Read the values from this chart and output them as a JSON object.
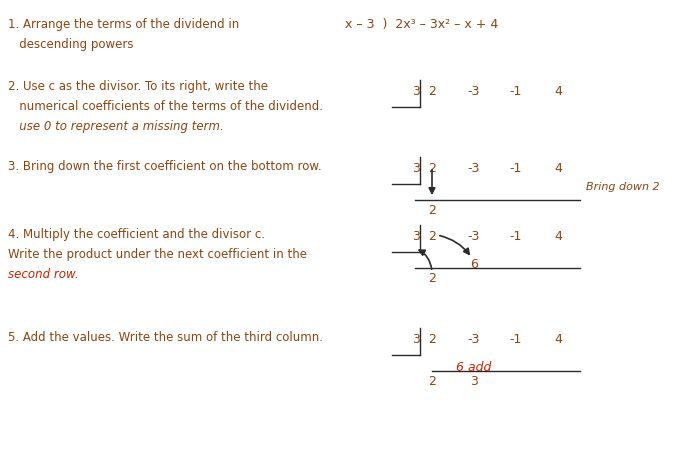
{
  "bg_color": "#ffffff",
  "brown": "#8B4513",
  "black": "#2a2a2a",
  "red": "#cc2200",
  "fig_width": 6.93,
  "fig_height": 4.53,
  "dpi": 100,
  "fs": 8.5,
  "fs_math": 9.0,
  "step1_line1": "1. Arrange the terms of the dividend in",
  "step1_line2": "   descending powers",
  "step1_right": "x – 3  )  2x³ – 3x² – x + 4",
  "step2_line1": "2. Use c as the divisor. To its right, write the",
  "step2_line2": "   numerical coefficients of the terms of the dividend.",
  "step2_line3": "   use 0 to represent a missing term.",
  "step3_line1": "3. Bring down the first coefficient on the bottom row.",
  "step4_line1": "4. Multiply the coefficient and the divisor c.",
  "step4_line2": "Write the product under the next coefficient in the",
  "step4_line3": "second row.",
  "step5_line1": "5. Add the values. Write the sum of the third column.",
  "bring_down_label": "Bring down 2",
  "coeffs": [
    "2",
    "-3",
    "-1",
    "4"
  ],
  "divisor": "3",
  "result_6": "6",
  "add_label": "6 add"
}
